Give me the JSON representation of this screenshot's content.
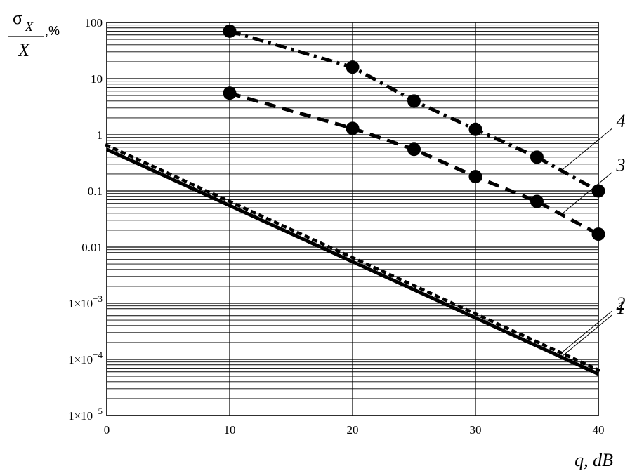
{
  "chart_data": {
    "type": "line",
    "title": "",
    "xlabel": "q, dB",
    "ylabel": {
      "numerator": "σ",
      "subscript": "X",
      "denominator": "X",
      "unit": ",%"
    },
    "xlim": [
      0,
      40
    ],
    "ylim": [
      1e-05,
      100
    ],
    "y_scale": "log",
    "grid": true,
    "x_ticks": [
      "0",
      "10",
      "20",
      "30",
      "40"
    ],
    "y_ticks": [
      {
        "value": 100,
        "base": "100",
        "exp": ""
      },
      {
        "value": 10,
        "base": "10",
        "exp": ""
      },
      {
        "value": 1,
        "base": "1",
        "exp": ""
      },
      {
        "value": 0.1,
        "base": "0.1",
        "exp": ""
      },
      {
        "value": 0.01,
        "base": "0.01",
        "exp": ""
      },
      {
        "value": 0.001,
        "base": "1×10",
        "exp": "−3"
      },
      {
        "value": 0.0001,
        "base": "1×10",
        "exp": "−4"
      },
      {
        "value": 1e-05,
        "base": "1×10",
        "exp": "−5"
      }
    ],
    "series": [
      {
        "name": "1",
        "style": "solid",
        "x": [
          0,
          40
        ],
        "y": [
          0.55,
          5.5e-05
        ]
      },
      {
        "name": "2",
        "style": "dotted",
        "x": [
          0,
          40
        ],
        "y": [
          0.65,
          6.5e-05
        ]
      },
      {
        "name": "3",
        "style": "dashed",
        "markers": true,
        "x": [
          10,
          20,
          25,
          30,
          35,
          40
        ],
        "y": [
          5.5,
          1.3,
          0.55,
          0.18,
          0.065,
          0.017
        ]
      },
      {
        "name": "4",
        "style": "dash-dot",
        "markers": true,
        "x": [
          10,
          20,
          25,
          30,
          35,
          40
        ],
        "y": [
          70,
          16,
          4,
          1.25,
          0.4,
          0.1
        ]
      }
    ]
  }
}
